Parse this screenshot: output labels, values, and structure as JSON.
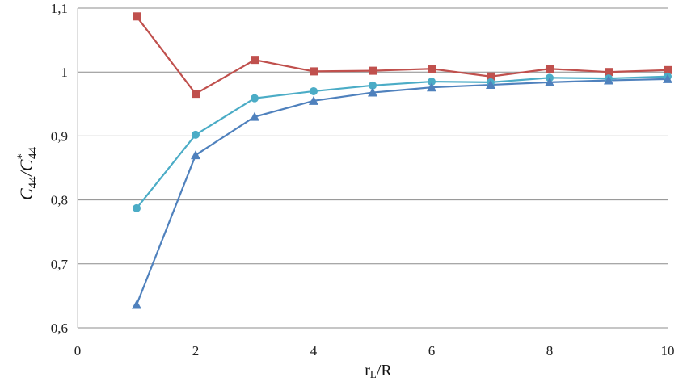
{
  "chart_data": {
    "type": "line",
    "title": "",
    "xlabel": "r",
    "xlabel_sub": "L",
    "xlabel_tail": "/R",
    "ylabel_main": "C",
    "ylabel_sub": "44",
    "ylabel_slash": "/",
    "ylabel_main2": "C",
    "ylabel_sup2": "*",
    "ylabel_sub2": "44",
    "xlim": [
      0,
      10
    ],
    "ylim": [
      0.6,
      1.1
    ],
    "x_ticks": [
      "0",
      "2",
      "4",
      "6",
      "8",
      "10"
    ],
    "x_tick_values": [
      0,
      2,
      4,
      6,
      8,
      10
    ],
    "y_ticks": [
      "0,6",
      "0,7",
      "0,8",
      "0,9",
      "1",
      "1,1"
    ],
    "y_tick_values": [
      0.6,
      0.7,
      0.8,
      0.9,
      1.0,
      1.1
    ],
    "grid": "horizontal",
    "legend": "none",
    "series": [
      {
        "marker": "square",
        "color": "#c0504d",
        "x": [
          1,
          2,
          3,
          4,
          5,
          6,
          7,
          8,
          9,
          10
        ],
        "values": [
          1.087,
          0.966,
          1.019,
          1.001,
          1.002,
          1.005,
          0.993,
          1.005,
          1.0,
          1.003
        ]
      },
      {
        "marker": "circle",
        "color": "#4bacc6",
        "x": [
          1,
          2,
          3,
          4,
          5,
          6,
          7,
          8,
          9,
          10
        ],
        "values": [
          0.787,
          0.902,
          0.959,
          0.97,
          0.979,
          0.985,
          0.984,
          0.991,
          0.99,
          0.993
        ]
      },
      {
        "marker": "triangle",
        "color": "#4f81bd",
        "x": [
          1,
          2,
          3,
          4,
          5,
          6,
          7,
          8,
          9,
          10
        ],
        "values": [
          0.636,
          0.87,
          0.93,
          0.955,
          0.968,
          0.976,
          0.98,
          0.984,
          0.987,
          0.989
        ]
      }
    ]
  }
}
